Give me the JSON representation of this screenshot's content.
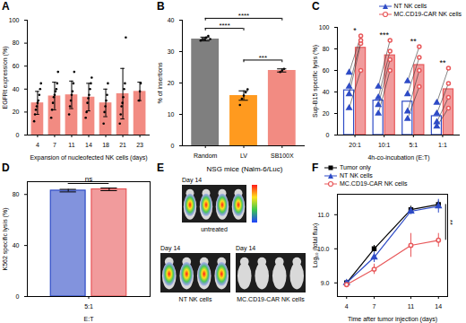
{
  "chart_data": [
    {
      "panel": "A",
      "type": "bar",
      "categories": [
        "4",
        "7",
        "11",
        "14",
        "18",
        "21",
        "23"
      ],
      "values": [
        28,
        34,
        35,
        33,
        28,
        36,
        38
      ],
      "errors": [
        10,
        12,
        12,
        12,
        12,
        22,
        8
      ],
      "points": [
        [
          12,
          18,
          22,
          25,
          28,
          30,
          35,
          40,
          45
        ],
        [
          15,
          22,
          28,
          33,
          35,
          38,
          40,
          45,
          55
        ],
        [
          18,
          25,
          30,
          35,
          38,
          45,
          55
        ],
        [
          15,
          20,
          28,
          32,
          35,
          40,
          45,
          50
        ],
        [
          10,
          20,
          25,
          30,
          35,
          45
        ],
        [
          10,
          18,
          25,
          28,
          33,
          40,
          45,
          85
        ],
        [
          30,
          38,
          45
        ]
      ],
      "color": "#f28b82",
      "xlabel": "Expansion of nucleofected NK cells (days)",
      "ylabel": "EGFRt expression (%)",
      "ylim": [
        0,
        100
      ],
      "yticks": [
        0,
        20,
        40,
        60,
        80,
        100
      ],
      "grid": false
    },
    {
      "panel": "B",
      "type": "bar",
      "categories": [
        "Random",
        "LV",
        "SB100X"
      ],
      "values": [
        34,
        16,
        24
      ],
      "errors": [
        0.6,
        1.5,
        0.5
      ],
      "points": [
        [
          33.5,
          34,
          34,
          34.5,
          35,
          34
        ],
        [
          13,
          15,
          16,
          17,
          18
        ],
        [
          23.5,
          24,
          24.5
        ]
      ],
      "colors": [
        "#7f7f7f",
        "#ff9a1f",
        "#f28b82"
      ],
      "ylabel": "% of insertions",
      "ylim": [
        0,
        40
      ],
      "yticks": [
        0,
        10,
        20,
        30,
        40
      ],
      "grid": false,
      "comparisons": [
        {
          "from": "LV",
          "to": "SB100X",
          "label": "***"
        },
        {
          "from": "Random",
          "to": "LV",
          "label": "****"
        },
        {
          "from": "Random",
          "to": "SB100X",
          "label": "****"
        }
      ]
    },
    {
      "panel": "C",
      "type": "bar",
      "categories": [
        "20:1",
        "10:1",
        "5:1",
        "1:1"
      ],
      "series": [
        {
          "name": "NT NK cells",
          "color": "#2e4bc6",
          "marker": "triangle",
          "values": [
            41.5,
            32,
            31,
            17.5
          ],
          "points": [
            [
              25,
              38,
              45,
              58
            ],
            [
              20,
              28,
              35,
              45
            ],
            [
              15,
              22,
              38,
              50
            ],
            [
              8,
              12,
              20,
              30
            ]
          ]
        },
        {
          "name": "MC.CD19-CAR NK cells",
          "color": "#e8585a",
          "marker": "circle",
          "values": [
            81,
            74,
            65,
            42.5
          ],
          "points": [
            [
              60,
              85,
              88,
              92
            ],
            [
              60,
              70,
              78,
              88
            ],
            [
              45,
              60,
              72,
              82
            ],
            [
              25,
              35,
              48,
              62
            ]
          ]
        }
      ],
      "annotations": [
        "*",
        "***",
        "**",
        "**"
      ],
      "xlabel": "4h-co-incubation (E:T)",
      "ylabel": "Sup-B15 specific lysis (%)",
      "ylim": [
        0,
        100
      ],
      "yticks": [
        0,
        20,
        40,
        60,
        80,
        100
      ],
      "grid": false,
      "legend": "top-right"
    },
    {
      "panel": "D",
      "type": "bar",
      "categories": [
        "5:1"
      ],
      "series": [
        {
          "color": "#2e4bc6",
          "values": [
            83
          ],
          "errors": [
            1
          ]
        },
        {
          "color": "#e8585a",
          "values": [
            84
          ],
          "errors": [
            1
          ]
        }
      ],
      "annotation": "ns",
      "xlabel": "E:T",
      "ylabel": "K562 specific lysis (%)",
      "ylim": [
        0,
        90
      ],
      "yticks": [
        0,
        40,
        80
      ],
      "grid": false
    },
    {
      "panel": "E",
      "type": "image",
      "title": "NSG mice (Nalm-6/Luc)",
      "groups": [
        {
          "name": "untreated",
          "label": "Day 14"
        },
        {
          "name": "NT NK cells",
          "label": "Day 14"
        },
        {
          "name": "MC.CD19-CAR NK cells",
          "label": "Day 14"
        }
      ]
    },
    {
      "panel": "F",
      "type": "line",
      "x": [
        4,
        7,
        11,
        14
      ],
      "series": [
        {
          "name": "Tumor only",
          "color": "#000000",
          "marker": "square",
          "values": [
            9.0,
            10.0,
            11.15,
            11.3
          ],
          "errors": [
            0.05,
            0.1,
            0.1,
            0.1
          ]
        },
        {
          "name": "NT NK cells",
          "color": "#2e4bc6",
          "marker": "triangle",
          "values": [
            9.0,
            9.75,
            11.1,
            11.25
          ],
          "errors": [
            0.05,
            0.15,
            0.1,
            0.2
          ]
        },
        {
          "name": "MC.CD19-CAR NK cells",
          "color": "#e8585a",
          "marker": "circle",
          "values": [
            8.95,
            9.4,
            10.1,
            10.25
          ],
          "errors": [
            0.05,
            0.15,
            0.35,
            0.2
          ]
        }
      ],
      "annotation": {
        "label": "**",
        "x": 14,
        "between": [
          "Tumor only",
          "MC.CD19-CAR NK cells"
        ]
      },
      "xlabel": "Time after tumor injection (days)",
      "ylabel": "Log₁₀ (total flux)",
      "xlim": [
        3,
        15
      ],
      "xticks": [
        4,
        7,
        11,
        14
      ],
      "ylim": [
        8.6,
        11.6
      ],
      "yticks": [
        9,
        10,
        11
      ],
      "grid": false,
      "legend": "top-left"
    }
  ]
}
